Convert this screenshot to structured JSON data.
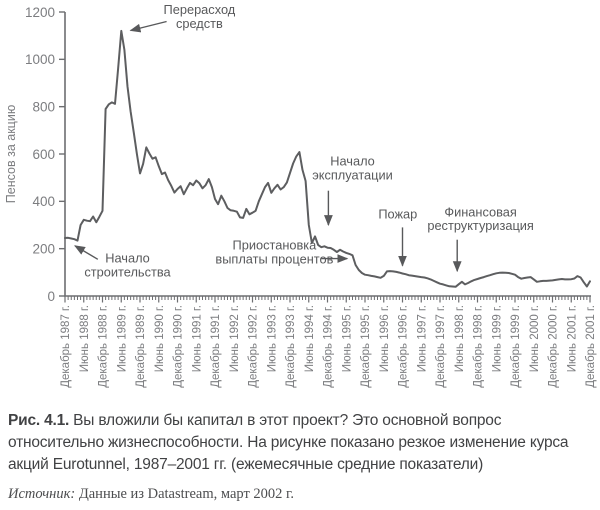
{
  "colors": {
    "line": "#5d5e60",
    "axis": "#6d6e71",
    "tick_label": "#7c7d80",
    "annotation": "#58595b",
    "caption": "#414244",
    "source": "#4c4d4f"
  },
  "chart_data": {
    "type": "line",
    "title": "",
    "ylabel": "Пенсов за акцию",
    "xlabel": "",
    "ylim": [
      0,
      1200
    ],
    "yticks": [
      0,
      200,
      400,
      600,
      800,
      1000,
      1200
    ],
    "grid": false,
    "legend": false,
    "x_unit": "месяц",
    "x_range": "Декабрь 1987 — Декабрь 2001",
    "minor_ticks_per_major": 6,
    "x_major_tick_labels": [
      "Декабрь 1987 г.",
      "Июнь 1988 г.",
      "Декабрь 1988 г.",
      "Июнь 1989 г.",
      "Декабрь 1989 г.",
      "Июнь 1990 г.",
      "Декабрь 1990 г.",
      "Июнь 1991 г.",
      "Декабрь 1991 г.",
      "Июнь 1992 г.",
      "Декабрь 1992 г.",
      "Июнь 1993 г.",
      "Декабрь 1993 г.",
      "Июнь 1994 г.",
      "Декабрь 1994 г.",
      "Июнь 1995 г.",
      "Декабрь 1995 г.",
      "Июнь 1996 г.",
      "Декабрь 1996 г.",
      "Июнь 1997 г.",
      "Декабрь 1997 г.",
      "Июнь 1998 г.",
      "Декабрь 1998 г.",
      "Июнь 1999 г.",
      "Декабрь 1999 г.",
      "Июнь 2000 г.",
      "Декабрь 2000 г.",
      "Июнь 2001 г.",
      "Декабрь 2001 г."
    ],
    "series": [
      {
        "name": "Курс акций Eurotunnel (ежемесячные средние, пенсов за акцию)",
        "values": [
          245,
          246,
          243,
          240,
          234,
          300,
          322,
          318,
          316,
          336,
          312,
          335,
          360,
          790,
          810,
          818,
          812,
          960,
          1120,
          1040,
          885,
          780,
          690,
          600,
          518,
          558,
          628,
          602,
          580,
          586,
          548,
          515,
          522,
          490,
          465,
          437,
          452,
          464,
          430,
          455,
          478,
          468,
          488,
          476,
          455,
          468,
          494,
          460,
          410,
          388,
          424,
          400,
          372,
          362,
          360,
          356,
          332,
          330,
          368,
          345,
          352,
          360,
          400,
          430,
          460,
          478,
          436,
          455,
          470,
          450,
          460,
          480,
          520,
          560,
          590,
          608,
          533,
          486,
          300,
          224,
          252,
          216,
          206,
          210,
          204,
          203,
          195,
          186,
          195,
          188,
          182,
          178,
          172,
          131,
          110,
          97,
          90,
          88,
          85,
          83,
          80,
          77,
          85,
          104,
          105,
          104,
          102,
          99,
          95,
          92,
          88,
          86,
          84,
          82,
          80,
          78,
          75,
          70,
          64,
          58,
          52,
          49,
          45,
          41,
          40,
          39,
          50,
          60,
          49,
          55,
          62,
          68,
          72,
          76,
          80,
          84,
          88,
          92,
          96,
          98,
          99,
          98,
          97,
          94,
          90,
          80,
          73,
          76,
          78,
          80,
          70,
          60,
          62,
          64,
          64,
          65,
          66,
          68,
          70,
          72,
          70,
          70,
          71,
          74,
          84,
          78,
          58,
          40,
          62
        ]
      }
    ],
    "annotations": [
      {
        "id": "cost-overrun",
        "lines": [
          "Перерасход",
          "средств"
        ],
        "text_month": 43,
        "text_value": 1180,
        "arrow": {
          "from_month": 32.5,
          "from_value": 1160,
          "to_month": 21,
          "to_value": 1122
        }
      },
      {
        "id": "construction-start",
        "lines": [
          "Начало",
          "строительства"
        ],
        "text_month": 20,
        "text_value": 130,
        "arrow": {
          "from_month": 10.5,
          "from_value": 155,
          "to_month": 3.2,
          "to_value": 212
        }
      },
      {
        "id": "operation-start",
        "lines": [
          "Начало",
          "эксплуатации"
        ],
        "text_month": 92,
        "text_value": 540,
        "arrow": {
          "from_month": 84.3,
          "from_value": 445,
          "to_month": 84.3,
          "to_value": 300
        }
      },
      {
        "id": "interest-suspension",
        "lines": [
          "Приостановка",
          "выплаты процентов"
        ],
        "text_month": 67,
        "text_value": 185,
        "arrow": {
          "from_month": 82,
          "from_value": 158,
          "to_month": 90.3,
          "to_value": 158
        }
      },
      {
        "id": "fire",
        "lines": [
          "Пожар"
        ],
        "text_month": 106.5,
        "text_value": 345,
        "arrow": {
          "from_month": 108,
          "from_value": 290,
          "to_month": 108,
          "to_value": 128
        }
      },
      {
        "id": "financial-restructuring",
        "lines": [
          "Финансовая",
          "реструктуризация"
        ],
        "text_month": 133,
        "text_value": 325,
        "arrow": {
          "from_month": 125.5,
          "from_value": 238,
          "to_month": 125.5,
          "to_value": 105
        }
      }
    ]
  },
  "figure": {
    "caption": {
      "label": "Рис. 4.1.",
      "text": "Вы вложили бы капитал в этот проект? Это основной вопрос относительно жизнеспособности. На рисунке показано резкое изменение курса акций Eurotunnel, 1987–2001 гг. (ежемесячные средние показатели)"
    },
    "source": {
      "label": "Источник:",
      "text": "Данные из Datastream, март 2002 г."
    }
  }
}
